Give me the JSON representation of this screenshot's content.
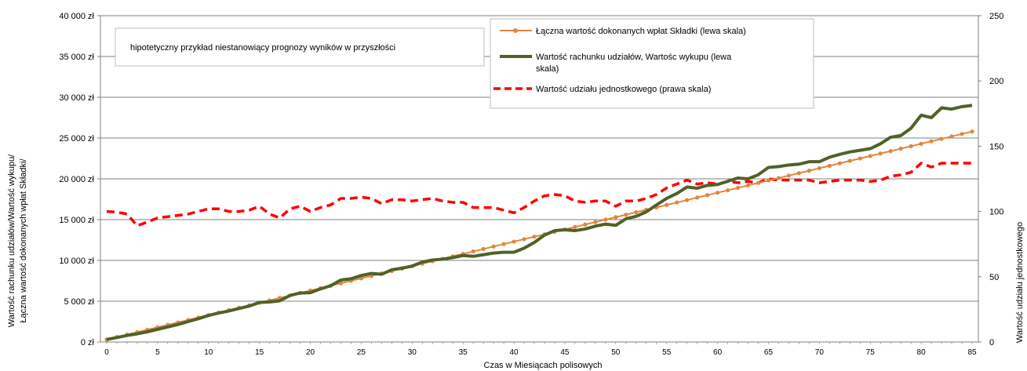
{
  "chart_data": {
    "type": "line",
    "note": "hipotetyczny przykład niestanowiący prognozy wyników w przyszłości",
    "xlabel": "Czas w Miesiącach polisowych",
    "ylabel_left_line1": "Wartość rachunku udziałów/Wartość wykupu/",
    "ylabel_left_line2": "Łączna wartość dokonanych wpłat Składki/",
    "ylabel_right": "Wartość udziału jednostkowego",
    "xlim": [
      0,
      85
    ],
    "ylim_left": [
      0,
      40000
    ],
    "ylim_right": [
      0,
      250
    ],
    "x_ticks": [
      0,
      5,
      10,
      15,
      20,
      25,
      30,
      35,
      40,
      45,
      50,
      55,
      60,
      65,
      70,
      75,
      80,
      85
    ],
    "y_left_ticks": [
      0,
      5000,
      10000,
      15000,
      20000,
      25000,
      30000,
      35000,
      40000
    ],
    "y_left_tick_labels": [
      "0 zł",
      "5 000 zł",
      "10 000 zł",
      "15 000 zł",
      "20 000 zł",
      "25 000 zł",
      "30 000 zł",
      "35 000 zł",
      "40 000 zł"
    ],
    "y_right_ticks": [
      0,
      50,
      100,
      150,
      200,
      250
    ],
    "y_right_tick_labels": [
      "0",
      "50",
      "100",
      "150",
      "200",
      "250"
    ],
    "grid": true,
    "legend_position": "top-center-right",
    "x": [
      0,
      1,
      2,
      3,
      4,
      5,
      6,
      7,
      8,
      9,
      10,
      11,
      12,
      13,
      14,
      15,
      16,
      17,
      18,
      19,
      20,
      21,
      22,
      23,
      24,
      25,
      26,
      27,
      28,
      29,
      30,
      31,
      32,
      33,
      34,
      35,
      36,
      37,
      38,
      39,
      40,
      41,
      42,
      43,
      44,
      45,
      46,
      47,
      48,
      49,
      50,
      51,
      52,
      53,
      54,
      55,
      56,
      57,
      58,
      59,
      60,
      61,
      62,
      63,
      64,
      65,
      66,
      67,
      68,
      69,
      70,
      71,
      72,
      73,
      74,
      75,
      76,
      77,
      78,
      79,
      80,
      81,
      82,
      83,
      84,
      85
    ],
    "series": [
      {
        "name": "Łączna wartość dokonanych wpłat Składki (lewa skala)",
        "axis": "left",
        "color": "#e0873f",
        "marker": true,
        "values": [
          300,
          600,
          900,
          1200,
          1500,
          1800,
          2100,
          2400,
          2700,
          3000,
          3300,
          3600,
          3900,
          4200,
          4500,
          4800,
          5100,
          5400,
          5700,
          6000,
          6300,
          6600,
          6900,
          7200,
          7500,
          7800,
          8100,
          8400,
          8700,
          9000,
          9300,
          9600,
          9900,
          10200,
          10500,
          10800,
          11100,
          11400,
          11700,
          12000,
          12300,
          12600,
          12900,
          13200,
          13500,
          13800,
          14100,
          14400,
          14700,
          15000,
          15300,
          15600,
          15900,
          16200,
          16500,
          16800,
          17100,
          17400,
          17700,
          18000,
          18300,
          18600,
          18900,
          19200,
          19500,
          19800,
          20100,
          20400,
          20700,
          21000,
          21300,
          21600,
          21900,
          22200,
          22500,
          22800,
          23100,
          23400,
          23700,
          24000,
          24300,
          24600,
          24900,
          25200,
          25500,
          25800
        ]
      },
      {
        "name": "Wartość rachunku udziałów, Wartośc wykupu (lewa skala)",
        "axis": "left",
        "color": "#4f6228",
        "values": [
          300,
          550,
          800,
          1000,
          1250,
          1550,
          1850,
          2150,
          2500,
          2850,
          3250,
          3550,
          3800,
          4100,
          4400,
          4850,
          4900,
          5050,
          5700,
          6000,
          6050,
          6500,
          6900,
          7600,
          7750,
          8150,
          8400,
          8300,
          8850,
          9050,
          9300,
          9800,
          10050,
          10150,
          10350,
          10600,
          10500,
          10700,
          10900,
          11000,
          11000,
          11500,
          12200,
          13100,
          13650,
          13750,
          13650,
          13850,
          14200,
          14450,
          14300,
          15100,
          15400,
          15950,
          16800,
          17600,
          18200,
          19000,
          18850,
          19200,
          19300,
          19700,
          20100,
          20000,
          20500,
          21400,
          21500,
          21700,
          21800,
          22100,
          22100,
          22650,
          23000,
          23300,
          23500,
          23700,
          24300,
          25100,
          25300,
          26200,
          27800,
          27500,
          28700,
          28550,
          28850,
          29000
        ]
      },
      {
        "name": "Wartość udziału jednostkowego (prawa skala)",
        "axis": "right",
        "color": "#ff0000",
        "dashed": true,
        "values": [
          100,
          99.5,
          98,
          89,
          92,
          95,
          96,
          97,
          98,
          100,
          102,
          102,
          100,
          100,
          101,
          104,
          98,
          95,
          102,
          104,
          100,
          103,
          105,
          110,
          110,
          111,
          110,
          106,
          109,
          109,
          108,
          109,
          110,
          108,
          107,
          107,
          103,
          103,
          103,
          101,
          99,
          103,
          108,
          112,
          113,
          112,
          108,
          107,
          108,
          108,
          104,
          108,
          108,
          110,
          113,
          118,
          121,
          124,
          121,
          122,
          121,
          123,
          122,
          123,
          122,
          125,
          124,
          124,
          124,
          124,
          122,
          123,
          124,
          124,
          124,
          123,
          124,
          127,
          128,
          130,
          137,
          134,
          137,
          137,
          137,
          137
        ]
      }
    ]
  }
}
